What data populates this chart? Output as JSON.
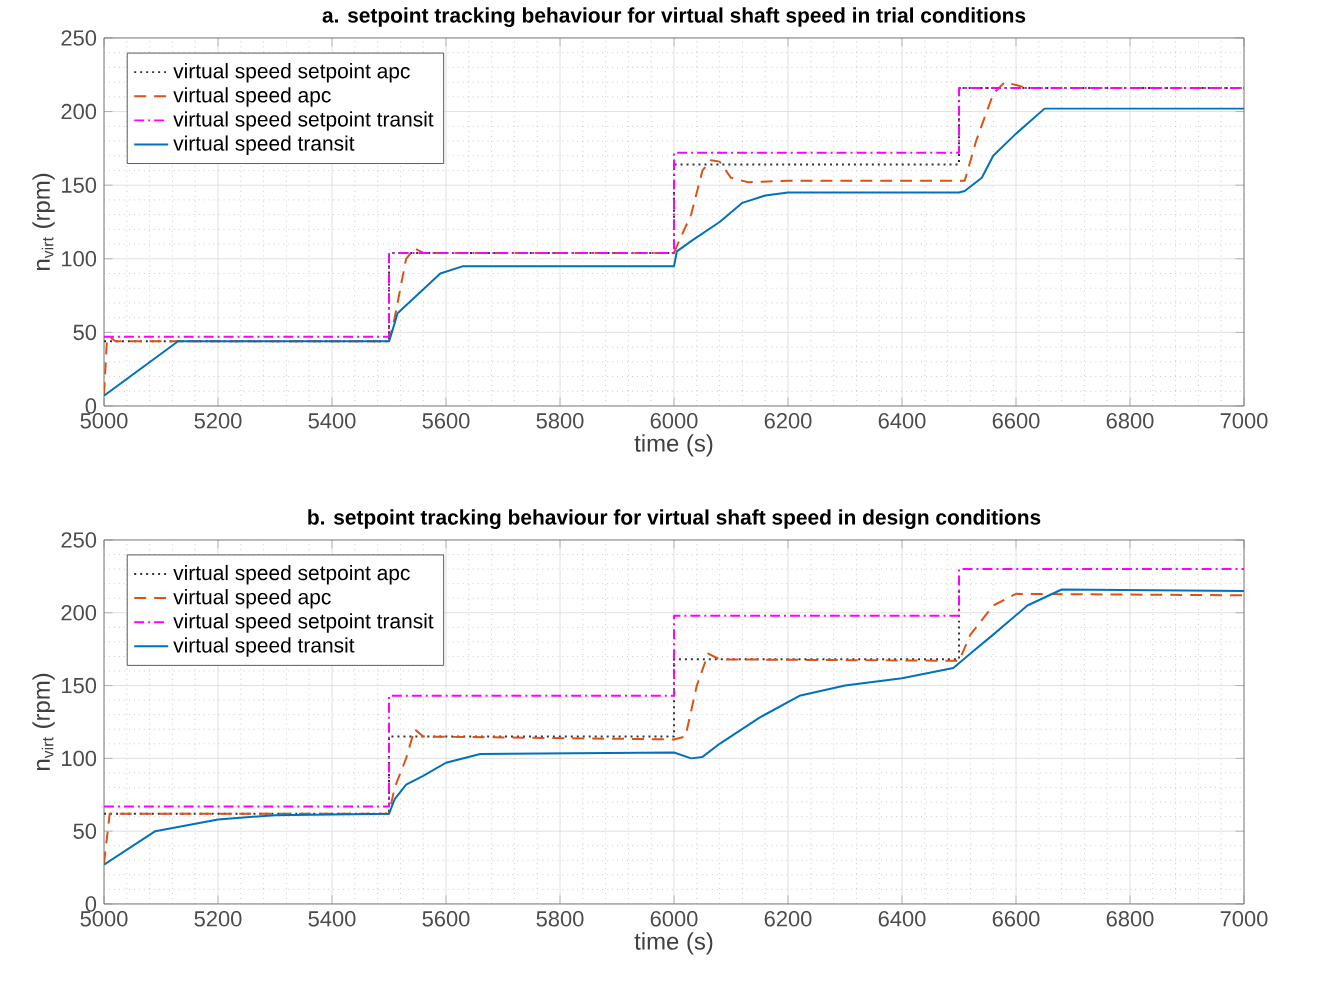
{
  "chart_data": [
    {
      "type": "line",
      "title": "a. setpoint tracking behaviour for virtual shaft speed in trial conditions",
      "xlabel": "time (s)",
      "ylabel": "n$_{virt}$ (rpm)",
      "xlim": [
        5000,
        7000
      ],
      "xticks": [
        5000,
        5200,
        5400,
        5600,
        5800,
        6000,
        6200,
        6400,
        6600,
        6800,
        7000
      ],
      "ylim": [
        0,
        250
      ],
      "yticks": [
        0,
        50,
        100,
        150,
        200,
        250
      ],
      "grid": true,
      "legend": "top left",
      "series": [
        {
          "name": "virtual speed setpoint apc",
          "color": "#333333",
          "line_style": "dotted",
          "x": [
            5000,
            5500,
            5500,
            6000,
            6000,
            6500,
            6500,
            7000
          ],
          "values": [
            44,
            44,
            104,
            104,
            164,
            164,
            216,
            216
          ]
        },
        {
          "name": "virtual speed apc",
          "color": "#d95319",
          "line_style": "dashed",
          "x": [
            5000,
            5005,
            5010,
            5020,
            5500,
            5510,
            5530,
            5545,
            5560,
            6000,
            6010,
            6030,
            6050,
            6065,
            6080,
            6100,
            6130,
            6200,
            6500,
            6510,
            6530,
            6560,
            6580,
            6600,
            6620,
            7000
          ],
          "values": [
            8,
            44,
            47,
            44,
            44,
            60,
            100,
            107,
            104,
            104,
            113,
            130,
            160,
            167,
            166,
            155,
            152,
            153,
            153,
            153,
            180,
            212,
            220,
            218,
            216,
            216
          ]
        },
        {
          "name": "virtual speed setpoint transit",
          "color": "#ff00ff",
          "line_style": "dashdot",
          "x": [
            5000,
            5500,
            5500,
            6000,
            6000,
            6500,
            6500,
            7000
          ],
          "values": [
            47,
            47,
            104,
            104,
            172,
            172,
            216,
            216
          ]
        },
        {
          "name": "virtual speed transit",
          "color": "#0072bd",
          "line_style": "solid",
          "x": [
            5000,
            5130,
            5500,
            5505,
            5515,
            5540,
            5590,
            5630,
            6000,
            6005,
            6030,
            6080,
            6120,
            6160,
            6200,
            6500,
            6510,
            6540,
            6560,
            6600,
            6650,
            7000
          ],
          "values": [
            7,
            44,
            44,
            50,
            63,
            72,
            90,
            95,
            95,
            105,
            112,
            125,
            138,
            143,
            145,
            145,
            146,
            155,
            170,
            185,
            202,
            202
          ]
        }
      ]
    },
    {
      "type": "line",
      "title": "b. setpoint tracking behaviour for virtual shaft speed in design conditions",
      "xlabel": "time (s)",
      "ylabel": "n$_{virt}$ (rpm)",
      "xlim": [
        5000,
        7000
      ],
      "xticks": [
        5000,
        5200,
        5400,
        5600,
        5800,
        6000,
        6200,
        6400,
        6600,
        6800,
        7000
      ],
      "ylim": [
        0,
        250
      ],
      "yticks": [
        0,
        50,
        100,
        150,
        200,
        250
      ],
      "grid": true,
      "legend": "top left",
      "series": [
        {
          "name": "virtual speed setpoint apc",
          "color": "#333333",
          "line_style": "dotted",
          "x": [
            5000,
            5500,
            5500,
            6000,
            6000,
            6500,
            6500
          ],
          "values": [
            62,
            62,
            115,
            115,
            168,
            168,
            215
          ]
        },
        {
          "name": "virtual speed apc",
          "color": "#d95319",
          "line_style": "dashed",
          "x": [
            5000,
            5010,
            5500,
            5510,
            5530,
            5545,
            5560,
            6000,
            6020,
            6040,
            6060,
            6080,
            6500,
            6520,
            6560,
            6600,
            7000
          ],
          "values": [
            28,
            62,
            62,
            80,
            100,
            120,
            115,
            113,
            115,
            150,
            172,
            168,
            167,
            185,
            205,
            213,
            212
          ]
        },
        {
          "name": "virtual speed setpoint transit",
          "color": "#ff00ff",
          "line_style": "dashdot",
          "x": [
            5000,
            5500,
            5500,
            6000,
            6000,
            6500,
            6500,
            7000
          ],
          "values": [
            67,
            67,
            143,
            143,
            198,
            198,
            230,
            230
          ]
        },
        {
          "name": "virtual speed transit",
          "color": "#0072bd",
          "line_style": "solid",
          "x": [
            5000,
            5090,
            5200,
            5300,
            5500,
            5510,
            5530,
            5560,
            5600,
            5660,
            6000,
            6030,
            6050,
            6080,
            6150,
            6220,
            6300,
            6400,
            6490,
            6520,
            6560,
            6620,
            6680,
            7000
          ],
          "values": [
            27,
            50,
            58,
            61,
            62,
            72,
            82,
            88,
            97,
            103,
            104,
            100,
            101,
            110,
            128,
            143,
            150,
            155,
            162,
            172,
            185,
            205,
            216,
            215
          ]
        }
      ]
    }
  ]
}
